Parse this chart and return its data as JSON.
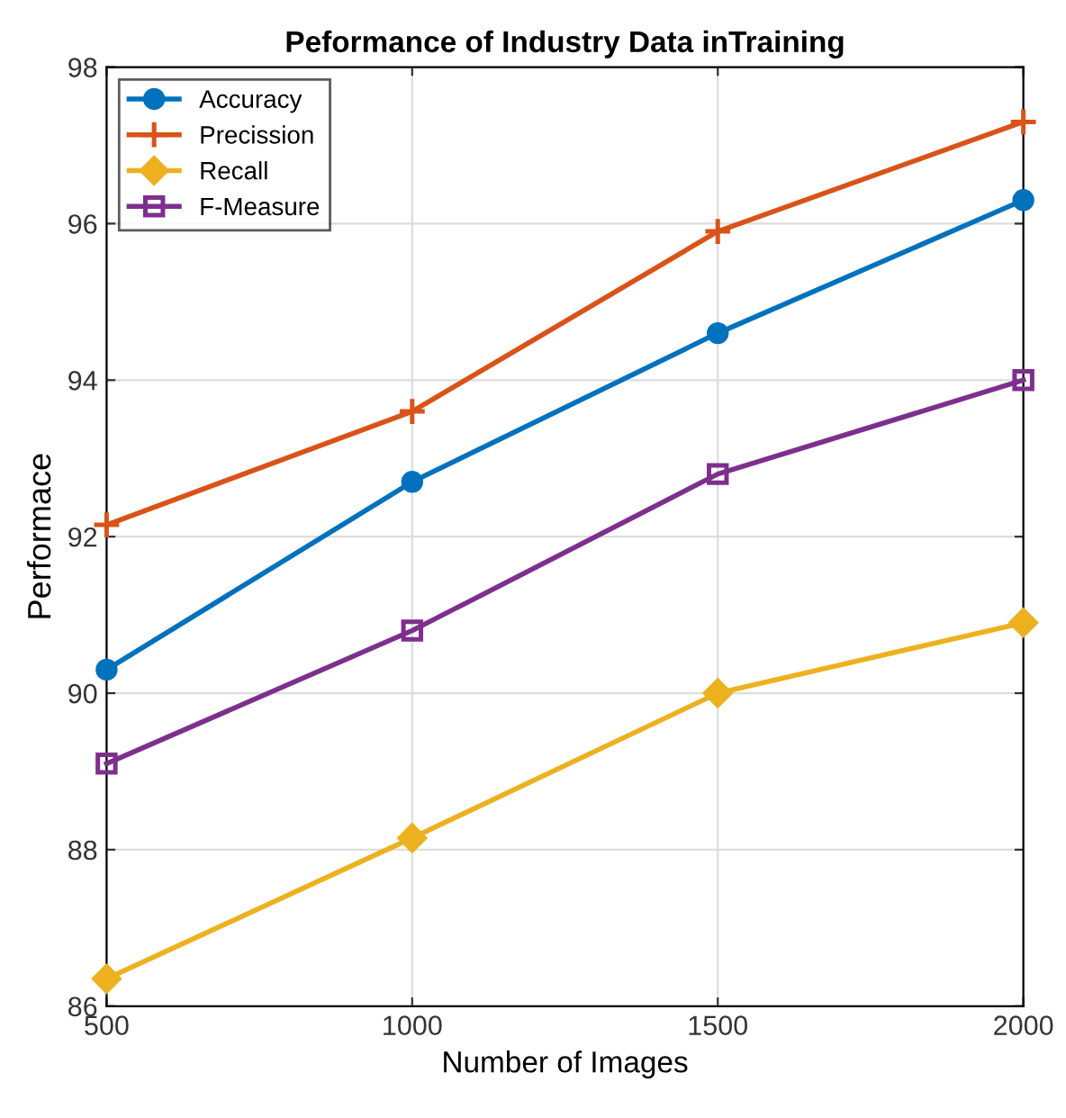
{
  "chart_data": {
    "type": "line",
    "title": "Peformance of Industry Data inTraining",
    "xlabel": "Number of Images",
    "ylabel": "Performace",
    "x": [
      500,
      1000,
      1500,
      2000
    ],
    "series": [
      {
        "name": "Accuracy",
        "color": "#0072bd",
        "marker": "circle",
        "values": [
          90.3,
          92.7,
          94.6,
          96.3
        ]
      },
      {
        "name": "Precission",
        "color": "#d95319",
        "marker": "cross",
        "values": [
          92.15,
          93.6,
          95.9,
          97.3
        ]
      },
      {
        "name": "Recall",
        "color": "#edb120",
        "marker": "diamond",
        "values": [
          86.35,
          88.15,
          90.0,
          90.9
        ]
      },
      {
        "name": "F-Measure",
        "color": "#7e2f8e",
        "marker": "square",
        "values": [
          89.1,
          90.8,
          92.8,
          94.0
        ]
      }
    ],
    "xlim": [
      500,
      2000
    ],
    "ylim": [
      86,
      98
    ],
    "xticks": [
      500,
      1000,
      1500,
      2000
    ],
    "yticks": [
      86,
      88,
      90,
      92,
      94,
      96,
      98
    ],
    "grid": true,
    "legend": "top left",
    "line_style": "solid"
  }
}
